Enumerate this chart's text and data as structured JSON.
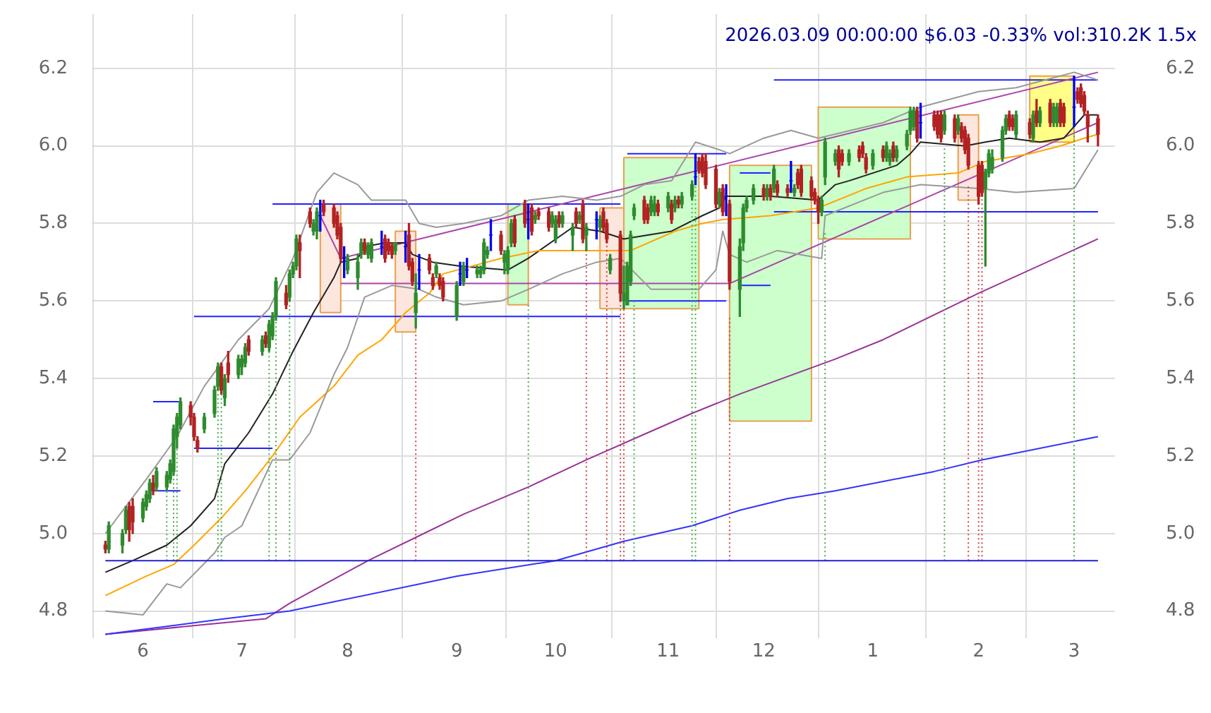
{
  "chart_data": {
    "type": "candlestick",
    "title": "2026.03.09 00:00:00 $6.03 -0.33% vol:310.2K 1.5x",
    "x": [
      "2025-05-22",
      "2025-05-23",
      "2025-05-27",
      "2025-05-28",
      "2025-05-29",
      "2025-05-30",
      "2025-06-02",
      "2025-06-03",
      "2025-06-04",
      "2025-06-05",
      "2025-06-06",
      "2025-06-09",
      "2025-06-10",
      "2025-06-11",
      "2025-06-12",
      "2025-06-13",
      "2025-06-16",
      "2025-06-17",
      "2025-06-18",
      "2025-06-20",
      "2025-06-23",
      "2025-06-24",
      "2025-06-25",
      "2025-06-26",
      "2025-06-27",
      "2025-06-30",
      "2025-07-01",
      "2025-07-02",
      "2025-07-03",
      "2025-07-07",
      "2025-07-08",
      "2025-07-09",
      "2025-07-10",
      "2025-07-11",
      "2025-07-14",
      "2025-07-15",
      "2025-07-16",
      "2025-07-17",
      "2025-07-18",
      "2025-07-21",
      "2025-07-22",
      "2025-07-23",
      "2025-07-24",
      "2025-07-25",
      "2025-07-28",
      "2025-07-29",
      "2025-07-30",
      "2025-07-31",
      "2025-08-01",
      "2025-08-04",
      "2025-08-05",
      "2025-08-06",
      "2025-08-07",
      "2025-08-08",
      "2025-08-11",
      "2025-08-12",
      "2025-08-13",
      "2025-08-14",
      "2025-08-15",
      "2025-08-18",
      "2025-08-19",
      "2025-08-20",
      "2025-08-21",
      "2025-08-22",
      "2025-08-25",
      "2025-08-26",
      "2025-08-27",
      "2025-08-28",
      "2025-08-29",
      "2025-09-02",
      "2025-09-03",
      "2025-09-04",
      "2025-09-05",
      "2025-09-08",
      "2025-09-09",
      "2025-09-10",
      "2025-09-11",
      "2025-09-12",
      "2025-09-15",
      "2025-09-16",
      "2025-09-17",
      "2025-09-18",
      "2025-09-19",
      "2025-09-22",
      "2025-09-23",
      "2025-09-24",
      "2025-09-25",
      "2025-09-26",
      "2025-09-29",
      "2025-09-30",
      "2025-10-01",
      "2025-10-02",
      "2025-10-03",
      "2025-10-06",
      "2025-10-07",
      "2025-10-08",
      "2025-10-09",
      "2025-10-10",
      "2025-10-13",
      "2025-10-14",
      "2025-10-15",
      "2025-10-16",
      "2025-10-17",
      "2025-10-20",
      "2025-10-21",
      "2025-10-22",
      "2025-10-23",
      "2025-10-24",
      "2025-10-27",
      "2025-10-28",
      "2025-10-29",
      "2025-10-30",
      "2025-10-31",
      "2025-11-03",
      "2025-11-04",
      "2025-11-05",
      "2025-11-06",
      "2025-11-07",
      "2025-11-10",
      "2025-11-11",
      "2025-11-12",
      "2025-11-13",
      "2025-11-14",
      "2025-11-17",
      "2025-11-18",
      "2025-11-19",
      "2025-11-20",
      "2025-11-21",
      "2025-11-24",
      "2025-11-25",
      "2025-11-26",
      "2025-11-28",
      "2025-12-01",
      "2025-12-02",
      "2025-12-03",
      "2025-12-04",
      "2025-12-05",
      "2025-12-08",
      "2025-12-09",
      "2025-12-10",
      "2025-12-11",
      "2025-12-12",
      "2025-12-15",
      "2025-12-16",
      "2025-12-17",
      "2025-12-18",
      "2025-12-19",
      "2025-12-22",
      "2025-12-23",
      "2025-12-24",
      "2025-12-26",
      "2025-12-29",
      "2025-12-30",
      "2025-12-31",
      "2026-01-02",
      "2026-01-05",
      "2026-01-06",
      "2026-01-07",
      "2026-01-08",
      "2026-01-09",
      "2026-01-12",
      "2026-01-13",
      "2026-01-14",
      "2026-01-15",
      "2026-01-16",
      "2026-01-20",
      "2026-01-21",
      "2026-01-22",
      "2026-01-23",
      "2026-01-26",
      "2026-01-27",
      "2026-01-28",
      "2026-01-29",
      "2026-01-30",
      "2026-02-02",
      "2026-02-03",
      "2026-02-04",
      "2026-02-05",
      "2026-02-06",
      "2026-02-09",
      "2026-02-10",
      "2026-02-11",
      "2026-02-12",
      "2026-02-13",
      "2026-02-17",
      "2026-02-18",
      "2026-02-19",
      "2026-02-20",
      "2026-02-23",
      "2026-02-24",
      "2026-02-25",
      "2026-02-26",
      "2026-02-27",
      "2026-03-02",
      "2026-03-03",
      "2026-03-04",
      "2026-03-05",
      "2026-03-06",
      "2026-03-09"
    ],
    "ohlc": [
      [
        4.97,
        4.98,
        4.95,
        4.96
      ],
      [
        4.96,
        5.03,
        4.95,
        5.02
      ],
      [
        4.97,
        5.01,
        4.95,
        5.0
      ],
      [
        5.01,
        5.07,
        5.0,
        5.06
      ],
      [
        5.07,
        5.08,
        4.98,
        5.01
      ],
      [
        5.07,
        5.09,
        5.0,
        5.03
      ],
      [
        5.04,
        5.09,
        5.03,
        5.08
      ],
      [
        5.07,
        5.11,
        5.06,
        5.1
      ],
      [
        5.09,
        5.14,
        5.08,
        5.13
      ],
      [
        5.13,
        5.15,
        5.1,
        5.11
      ],
      [
        5.12,
        5.17,
        5.11,
        5.16
      ],
      [
        5.12,
        5.16,
        5.11,
        5.15
      ],
      [
        5.14,
        5.19,
        5.13,
        5.18
      ],
      [
        5.16,
        5.28,
        5.15,
        5.27
      ],
      [
        5.25,
        5.31,
        5.22,
        5.3
      ],
      [
        5.28,
        5.35,
        5.27,
        5.34
      ],
      [
        5.33,
        5.34,
        5.28,
        5.3
      ],
      [
        5.3,
        5.31,
        5.24,
        5.25
      ],
      [
        5.24,
        5.25,
        5.21,
        5.22
      ],
      [
        5.27,
        5.31,
        5.26,
        5.3
      ],
      [
        5.31,
        5.38,
        5.3,
        5.37
      ],
      [
        5.38,
        5.44,
        5.37,
        5.43
      ],
      [
        5.43,
        5.44,
        5.36,
        5.37
      ],
      [
        5.35,
        5.41,
        5.33,
        5.4
      ],
      [
        5.44,
        5.47,
        5.39,
        5.41
      ],
      [
        5.41,
        5.46,
        5.4,
        5.45
      ],
      [
        5.43,
        5.46,
        5.41,
        5.45
      ],
      [
        5.44,
        5.49,
        5.43,
        5.48
      ],
      [
        5.5,
        5.51,
        5.46,
        5.47
      ],
      [
        5.47,
        5.51,
        5.46,
        5.5
      ],
      [
        5.51,
        5.52,
        5.48,
        5.49
      ],
      [
        5.48,
        5.55,
        5.47,
        5.54
      ],
      [
        5.51,
        5.57,
        5.5,
        5.56
      ],
      [
        5.56,
        5.66,
        5.55,
        5.65
      ],
      [
        5.62,
        5.64,
        5.58,
        5.59
      ],
      [
        5.61,
        5.68,
        5.6,
        5.67
      ],
      [
        5.67,
        5.7,
        5.66,
        5.69
      ],
      [
        5.69,
        5.77,
        5.68,
        5.76
      ],
      [
        5.75,
        5.77,
        5.66,
        5.73
      ],
      [
        5.83,
        5.84,
        5.79,
        5.8
      ],
      [
        5.78,
        5.81,
        5.77,
        5.8
      ],
      [
        5.78,
        5.84,
        5.76,
        5.83
      ],
      [
        5.82,
        5.86,
        5.78,
        5.82
      ],
      [
        5.85,
        5.86,
        5.82,
        5.83
      ],
      [
        5.84,
        5.85,
        5.79,
        5.8
      ],
      [
        5.82,
        5.83,
        5.76,
        5.77
      ],
      [
        5.79,
        5.8,
        5.7,
        5.71
      ],
      [
        5.71,
        5.74,
        5.66,
        5.71
      ],
      [
        5.68,
        5.72,
        5.67,
        5.71
      ],
      [
        5.66,
        5.72,
        5.63,
        5.7
      ],
      [
        5.72,
        5.76,
        5.71,
        5.75
      ],
      [
        5.75,
        5.76,
        5.72,
        5.73
      ],
      [
        5.72,
        5.75,
        5.71,
        5.74
      ],
      [
        5.71,
        5.76,
        5.7,
        5.75
      ],
      [
        5.74,
        5.78,
        5.72,
        5.74
      ],
      [
        5.76,
        5.77,
        5.7,
        5.71
      ],
      [
        5.75,
        5.76,
        5.72,
        5.73
      ],
      [
        5.74,
        5.75,
        5.71,
        5.72
      ],
      [
        5.73,
        5.75,
        5.72,
        5.75
      ],
      [
        5.74,
        5.78,
        5.7,
        5.74
      ],
      [
        5.77,
        5.8,
        5.68,
        5.69
      ],
      [
        5.7,
        5.71,
        5.64,
        5.65
      ],
      [
        5.57,
        5.67,
        5.53,
        5.62
      ],
      [
        5.68,
        5.72,
        5.63,
        5.68
      ],
      [
        5.71,
        5.72,
        5.67,
        5.68
      ],
      [
        5.66,
        5.67,
        5.63,
        5.64
      ],
      [
        5.67,
        5.7,
        5.66,
        5.69
      ],
      [
        5.66,
        5.67,
        5.63,
        5.64
      ],
      [
        5.65,
        5.66,
        5.6,
        5.61
      ],
      [
        5.56,
        5.65,
        5.55,
        5.64
      ],
      [
        5.67,
        5.7,
        5.64,
        5.67
      ],
      [
        5.65,
        5.7,
        5.64,
        5.69
      ],
      [
        5.68,
        5.71,
        5.66,
        5.68
      ],
      [
        5.67,
        5.69,
        5.66,
        5.68
      ],
      [
        5.67,
        5.69,
        5.66,
        5.68
      ],
      [
        5.68,
        5.76,
        5.67,
        5.75
      ],
      [
        5.72,
        5.74,
        5.71,
        5.73
      ],
      [
        5.77,
        5.81,
        5.73,
        5.77
      ],
      [
        5.77,
        5.78,
        5.72,
        5.73
      ],
      [
        5.7,
        5.73,
        5.67,
        5.72
      ],
      [
        5.68,
        5.74,
        5.67,
        5.73
      ],
      [
        5.75,
        5.81,
        5.74,
        5.8
      ],
      [
        5.81,
        5.82,
        5.74,
        5.75
      ],
      [
        5.85,
        5.86,
        5.79,
        5.8
      ],
      [
        5.81,
        5.85,
        5.76,
        5.81
      ],
      [
        5.84,
        5.85,
        5.77,
        5.78
      ],
      [
        5.81,
        5.83,
        5.8,
        5.82
      ],
      [
        5.83,
        5.84,
        5.81,
        5.82
      ],
      [
        5.83,
        5.84,
        5.78,
        5.79
      ],
      [
        5.8,
        5.83,
        5.79,
        5.82
      ],
      [
        5.76,
        5.82,
        5.75,
        5.81
      ],
      [
        5.82,
        5.83,
        5.79,
        5.8
      ],
      [
        5.8,
        5.83,
        5.79,
        5.82
      ],
      [
        5.77,
        5.8,
        5.73,
        5.79
      ],
      [
        5.83,
        5.84,
        5.79,
        5.8
      ],
      [
        5.81,
        5.83,
        5.8,
        5.82
      ],
      [
        5.85,
        5.86,
        5.75,
        5.76
      ],
      [
        5.77,
        5.8,
        5.73,
        5.79
      ],
      [
        5.81,
        5.83,
        5.76,
        5.81
      ],
      [
        5.79,
        5.82,
        5.78,
        5.81
      ],
      [
        5.83,
        5.84,
        5.78,
        5.79
      ],
      [
        5.8,
        5.81,
        5.75,
        5.76
      ],
      [
        5.68,
        5.72,
        5.67,
        5.71
      ],
      [
        5.77,
        5.78,
        5.6,
        5.62
      ],
      [
        5.6,
        5.69,
        5.58,
        5.62
      ],
      [
        5.59,
        5.7,
        5.59,
        5.69
      ],
      [
        5.65,
        5.78,
        5.64,
        5.77
      ],
      [
        5.82,
        5.85,
        5.81,
        5.84
      ],
      [
        5.86,
        5.87,
        5.8,
        5.81
      ],
      [
        5.84,
        5.85,
        5.8,
        5.81
      ],
      [
        5.83,
        5.87,
        5.82,
        5.86
      ],
      [
        5.83,
        5.87,
        5.82,
        5.85
      ],
      [
        5.85,
        5.86,
        5.82,
        5.83
      ],
      [
        5.84,
        5.88,
        5.83,
        5.87
      ],
      [
        5.85,
        5.86,
        5.8,
        5.81
      ],
      [
        5.84,
        5.87,
        5.83,
        5.86
      ],
      [
        5.86,
        5.87,
        5.84,
        5.85
      ],
      [
        5.85,
        5.88,
        5.84,
        5.87
      ],
      [
        5.87,
        5.91,
        5.86,
        5.9
      ],
      [
        5.92,
        5.98,
        5.9,
        5.92
      ],
      [
        5.96,
        5.97,
        5.93,
        5.94
      ],
      [
        5.97,
        5.98,
        5.92,
        5.93
      ],
      [
        5.96,
        5.98,
        5.89,
        5.9
      ],
      [
        5.94,
        5.95,
        5.84,
        5.85
      ],
      [
        5.85,
        5.89,
        5.84,
        5.88
      ],
      [
        5.89,
        5.9,
        5.82,
        5.83
      ],
      [
        5.87,
        5.9,
        5.82,
        5.87
      ],
      [
        5.85,
        5.86,
        5.63,
        5.65
      ],
      [
        5.63,
        5.76,
        5.56,
        5.74
      ],
      [
        5.75,
        5.85,
        5.73,
        5.84
      ],
      [
        5.84,
        5.87,
        5.83,
        5.86
      ],
      [
        5.86,
        5.9,
        5.85,
        5.89
      ],
      [
        5.89,
        5.9,
        5.86,
        5.87
      ],
      [
        5.87,
        5.9,
        5.86,
        5.89
      ],
      [
        5.89,
        5.9,
        5.86,
        5.87
      ],
      [
        5.89,
        5.95,
        5.88,
        5.94
      ],
      [
        5.9,
        5.91,
        5.87,
        5.88
      ],
      [
        5.89,
        5.9,
        5.87,
        5.88
      ],
      [
        5.91,
        5.96,
        5.88,
        5.91
      ],
      [
        5.88,
        5.9,
        5.87,
        5.89
      ],
      [
        5.93,
        5.94,
        5.89,
        5.9
      ],
      [
        5.94,
        5.95,
        5.87,
        5.88
      ],
      [
        5.91,
        5.92,
        5.86,
        5.87
      ],
      [
        5.88,
        5.89,
        5.85,
        5.86
      ],
      [
        5.86,
        5.87,
        5.8,
        5.83
      ],
      [
        5.83,
        5.87,
        5.82,
        5.86
      ],
      [
        5.92,
        6.02,
        5.9,
        6.01
      ],
      [
        5.96,
        5.99,
        5.95,
        5.98
      ],
      [
        5.99,
        6.0,
        5.92,
        5.94
      ],
      [
        5.98,
        5.99,
        5.95,
        5.96
      ],
      [
        5.96,
        5.99,
        5.95,
        5.98
      ],
      [
        5.99,
        6.0,
        5.96,
        5.97
      ],
      [
        6.0,
        6.01,
        5.97,
        5.98
      ],
      [
        5.97,
        5.98,
        5.93,
        5.94
      ],
      [
        5.95,
        5.99,
        5.94,
        5.98
      ],
      [
        5.99,
        6.0,
        5.96,
        5.97
      ],
      [
        5.97,
        6.01,
        5.96,
        6.0
      ],
      [
        5.96,
        5.99,
        5.95,
        5.98
      ],
      [
        6.0,
        6.01,
        5.96,
        5.97
      ],
      [
        5.97,
        6.0,
        5.96,
        5.99
      ],
      [
        6.0,
        6.04,
        5.99,
        6.03
      ],
      [
        6.04,
        6.1,
        6.03,
        6.09
      ],
      [
        6.05,
        6.1,
        6.04,
        6.09
      ],
      [
        6.09,
        6.1,
        6.01,
        6.02
      ],
      [
        6.06,
        6.11,
        6.02,
        6.06
      ],
      [
        6.08,
        6.09,
        6.04,
        6.05
      ],
      [
        6.08,
        6.09,
        6.02,
        6.03
      ],
      [
        6.08,
        6.09,
        6.01,
        6.02
      ],
      [
        6.04,
        6.09,
        6.03,
        6.08
      ],
      [
        6.07,
        6.08,
        6.01,
        6.02
      ],
      [
        6.04,
        6.08,
        6.03,
        6.07
      ],
      [
        6.05,
        6.06,
        6.01,
        6.02
      ],
      [
        6.04,
        6.05,
        5.98,
        5.99
      ],
      [
        6.02,
        6.03,
        5.94,
        5.95
      ],
      [
        5.95,
        5.96,
        5.85,
        5.87
      ],
      [
        5.95,
        5.96,
        5.87,
        5.88
      ],
      [
        5.89,
        5.94,
        5.69,
        5.93
      ],
      [
        5.93,
        5.99,
        5.92,
        5.98
      ],
      [
        5.94,
        5.99,
        5.93,
        5.97
      ],
      [
        5.97,
        6.05,
        5.96,
        6.04
      ],
      [
        6.04,
        6.08,
        6.03,
        6.07
      ],
      [
        6.08,
        6.09,
        6.04,
        6.05
      ],
      [
        6.07,
        6.08,
        6.04,
        6.05
      ],
      [
        6.03,
        6.09,
        6.02,
        6.08
      ],
      [
        6.06,
        6.07,
        6.02,
        6.03
      ],
      [
        6.02,
        6.09,
        6.01,
        6.08
      ],
      [
        6.09,
        6.12,
        6.05,
        6.06
      ],
      [
        6.06,
        6.1,
        6.05,
        6.09
      ],
      [
        6.11,
        6.12,
        6.05,
        6.06
      ],
      [
        6.06,
        6.11,
        6.05,
        6.1
      ],
      [
        6.06,
        6.11,
        6.05,
        6.1
      ],
      [
        6.11,
        6.12,
        6.05,
        6.06
      ],
      [
        6.1,
        6.11,
        6.05,
        6.06
      ],
      [
        6.1,
        6.18,
        6.05,
        6.1
      ],
      [
        6.14,
        6.15,
        6.11,
        6.12
      ],
      [
        6.15,
        6.16,
        6.1,
        6.11
      ],
      [
        6.13,
        6.14,
        6.08,
        6.09
      ],
      [
        6.08,
        6.09,
        6.01,
        6.05
      ],
      [
        6.07,
        6.08,
        6.0,
        6.03
      ]
    ],
    "series": [
      {
        "type": "area",
        "color": "#fce6de",
        "x": [
          "2025-07-24",
          "2025-07-24",
          "2025-07-30",
          "2025-07-30",
          "2025-07-24"
        ],
        "values": [
          5.57,
          5.85,
          5.85,
          5.57,
          5.57
        ]
      },
      {
        "type": "area",
        "color": "#fce6de",
        "x": [
          "2025-08-15",
          "2025-08-15",
          "2025-08-21",
          "2025-08-21",
          "2025-08-15"
        ],
        "values": [
          5.52,
          5.78,
          5.78,
          5.52,
          5.52
        ]
      },
      {
        "type": "area",
        "color": "#ccffcc",
        "x": [
          "2025-09-17",
          "2025-09-17",
          "2025-09-23",
          "2025-09-23",
          "2025-09-17"
        ],
        "values": [
          5.59,
          5.85,
          5.85,
          5.59,
          5.59
        ]
      },
      {
        "type": "area",
        "color": "#fce6de",
        "x": [
          "2025-10-14",
          "2025-10-14",
          "2025-10-21",
          "2025-10-21",
          "2025-10-14"
        ],
        "values": [
          5.58,
          5.84,
          5.84,
          5.58,
          5.58
        ]
      },
      {
        "type": "area",
        "color": "#ccffcc",
        "x": [
          "2025-10-21",
          "2025-10-21",
          "2025-11-12",
          "2025-11-12",
          "2025-10-21"
        ],
        "values": [
          5.58,
          5.97,
          5.97,
          5.58,
          5.58
        ]
      },
      {
        "type": "area",
        "color": "#ccffcc",
        "x": [
          "2025-11-21",
          "2025-11-21",
          "2025-12-15",
          "2025-12-15",
          "2025-11-21"
        ],
        "values": [
          5.29,
          5.95,
          5.95,
          5.29,
          5.29
        ]
      },
      {
        "type": "area",
        "color": "#ccffcc",
        "x": [
          "2025-12-17",
          "2025-12-17",
          "2026-01-13",
          "2026-01-13",
          "2025-12-17"
        ],
        "values": [
          5.76,
          6.1,
          6.1,
          5.76,
          5.76
        ]
      },
      {
        "type": "area",
        "color": "#fce6de",
        "x": [
          "2026-01-27",
          "2026-01-27",
          "2026-02-02",
          "2026-02-02",
          "2026-01-27"
        ],
        "values": [
          5.86,
          6.08,
          6.08,
          5.86,
          5.86
        ]
      },
      {
        "type": "area",
        "color": "#ffff88",
        "x": [
          "2026-02-17",
          "2026-02-17",
          "2026-03-02",
          "2026-03-02",
          "2026-02-17"
        ],
        "values": [
          6.01,
          6.18,
          6.18,
          6.01,
          6.01
        ]
      },
      {
        "type": "line",
        "color": "#2222cc",
        "x": [
          "2025-05-22",
          "2026-03-09"
        ],
        "values": [
          4.93,
          4.93
        ]
      },
      {
        "type": "line",
        "color": "#44aa44",
        "line_style": "dotted",
        "x": [
          "2025-06-09",
          "2025-06-09"
        ],
        "values": [
          4.93,
          5.11
        ]
      },
      {
        "type": "line",
        "color": "#44aa44",
        "line_style": "dotted",
        "x": [
          "2025-06-11",
          "2025-06-11"
        ],
        "values": [
          4.93,
          5.15
        ]
      },
      {
        "type": "line",
        "color": "#44aa44",
        "line_style": "dotted",
        "x": [
          "2025-06-12",
          "2025-06-12"
        ],
        "values": [
          4.93,
          5.22
        ]
      },
      {
        "type": "line",
        "color": "#44aa44",
        "line_style": "dotted",
        "x": [
          "2025-06-24",
          "2025-06-24"
        ],
        "values": [
          4.93,
          5.37
        ]
      },
      {
        "type": "line",
        "color": "#44aa44",
        "line_style": "dotted",
        "x": [
          "2025-06-25",
          "2025-06-25"
        ],
        "values": [
          4.93,
          5.36
        ]
      },
      {
        "type": "line",
        "color": "#44aa44",
        "line_style": "dotted",
        "x": [
          "2025-07-09",
          "2025-07-09"
        ],
        "values": [
          4.93,
          5.47
        ]
      },
      {
        "type": "line",
        "color": "#44aa44",
        "line_style": "dotted",
        "x": [
          "2025-07-11",
          "2025-07-11"
        ],
        "values": [
          4.93,
          5.55
        ]
      },
      {
        "type": "line",
        "color": "#44aa44",
        "line_style": "dotted",
        "x": [
          "2025-07-15",
          "2025-07-15"
        ],
        "values": [
          4.93,
          5.6
        ]
      },
      {
        "type": "line",
        "color": "#44aa44",
        "line_style": "dotted",
        "x": [
          "2025-09-23",
          "2025-09-23"
        ],
        "values": [
          4.93,
          5.59
        ]
      },
      {
        "type": "line",
        "color": "#44aa44",
        "line_style": "dotted",
        "x": [
          "2025-10-24",
          "2025-10-24"
        ],
        "values": [
          4.93,
          5.6
        ]
      },
      {
        "type": "line",
        "color": "#44aa44",
        "line_style": "dotted",
        "x": [
          "2025-11-10",
          "2025-11-10"
        ],
        "values": [
          4.93,
          5.86
        ]
      },
      {
        "type": "line",
        "color": "#44aa44",
        "line_style": "dotted",
        "x": [
          "2025-11-11",
          "2025-11-11"
        ],
        "values": [
          4.93,
          5.9
        ]
      },
      {
        "type": "line",
        "color": "#44aa44",
        "line_style": "dotted",
        "x": [
          "2025-12-19",
          "2025-12-19"
        ],
        "values": [
          4.93,
          5.78
        ]
      },
      {
        "type": "line",
        "color": "#44aa44",
        "line_style": "dotted",
        "x": [
          "2026-01-23",
          "2026-01-23"
        ],
        "values": [
          4.93,
          6.0
        ]
      },
      {
        "type": "line",
        "color": "#44aa44",
        "line_style": "dotted",
        "x": [
          "2026-03-02",
          "2026-03-02"
        ],
        "values": [
          4.93,
          6.04
        ]
      },
      {
        "type": "line",
        "color": "#cc4444",
        "line_style": "dotted",
        "x": [
          "2025-08-21",
          "2025-08-21"
        ],
        "values": [
          4.93,
          5.52
        ]
      },
      {
        "type": "line",
        "color": "#cc4444",
        "line_style": "dotted",
        "x": [
          "2025-10-10",
          "2025-10-10"
        ],
        "values": [
          4.93,
          5.73
        ]
      },
      {
        "type": "line",
        "color": "#cc4444",
        "line_style": "dotted",
        "x": [
          "2025-10-16",
          "2025-10-16"
        ],
        "values": [
          4.93,
          5.75
        ]
      },
      {
        "type": "line",
        "color": "#cc4444",
        "line_style": "dotted",
        "x": [
          "2025-10-20",
          "2025-10-20"
        ],
        "values": [
          4.93,
          5.6
        ]
      },
      {
        "type": "line",
        "color": "#cc4444",
        "line_style": "dotted",
        "x": [
          "2025-10-21",
          "2025-10-21"
        ],
        "values": [
          4.93,
          5.58
        ]
      },
      {
        "type": "line",
        "color": "#cc4444",
        "line_style": "dotted",
        "x": [
          "2025-11-21",
          "2025-11-21"
        ],
        "values": [
          4.93,
          5.56
        ]
      },
      {
        "type": "line",
        "color": "#cc4444",
        "line_style": "dotted",
        "x": [
          "2026-01-30",
          "2026-01-30"
        ],
        "values": [
          4.93,
          5.9
        ]
      },
      {
        "type": "line",
        "color": "#cc4444",
        "line_style": "dotted",
        "x": [
          "2026-02-02",
          "2026-02-02"
        ],
        "values": [
          4.93,
          5.85
        ]
      },
      {
        "type": "line",
        "color": "#cc4444",
        "line_style": "dotted",
        "x": [
          "2026-02-03",
          "2026-02-03"
        ],
        "values": [
          4.93,
          5.87
        ]
      },
      {
        "type": "line",
        "color": "#3333ff",
        "x": [
          "2025-05-22",
          "2025-06-26",
          "2025-07-15",
          "2025-09-02",
          "2025-10-01",
          "2025-10-21",
          "2025-11-10",
          "2025-11-24",
          "2025-12-08",
          "2025-12-22",
          "2026-01-20",
          "2026-02-03",
          "2026-03-09"
        ],
        "values": [
          4.74,
          4.78,
          4.8,
          4.89,
          4.93,
          4.98,
          5.02,
          5.06,
          5.09,
          5.11,
          5.16,
          5.19,
          5.25
        ]
      },
      {
        "type": "line",
        "color": "#993399",
        "x": [
          "2025-05-22",
          "2025-06-26",
          "2025-07-08",
          "2025-07-15",
          "2025-08-07",
          "2025-08-21",
          "2025-09-04",
          "2025-09-23",
          "2025-10-10",
          "2025-10-28",
          "2025-11-10",
          "2025-11-24",
          "2025-12-22",
          "2026-01-05",
          "2026-02-02",
          "2026-03-09"
        ],
        "values": [
          4.74,
          4.77,
          4.78,
          4.82,
          4.93,
          4.99,
          5.05,
          5.12,
          5.19,
          5.26,
          5.31,
          5.36,
          5.45,
          5.5,
          5.62,
          5.76
        ]
      },
      {
        "type": "line",
        "color": "#999999",
        "x": [
          "2025-05-22",
          "2025-06-03",
          "2025-06-12",
          "2025-06-20",
          "2025-06-30",
          "2025-07-09",
          "2025-07-16",
          "2025-07-23",
          "2025-07-28",
          "2025-08-04",
          "2025-08-08",
          "2025-08-18",
          "2025-08-22",
          "2025-08-27",
          "2025-09-04",
          "2025-09-15",
          "2025-09-23",
          "2025-10-03",
          "2025-10-13",
          "2025-10-20",
          "2025-10-27",
          "2025-11-04",
          "2025-11-11",
          "2025-11-18",
          "2025-11-21",
          "2025-12-01",
          "2025-12-09",
          "2025-12-17",
          "2026-01-05",
          "2026-01-16",
          "2026-02-02",
          "2026-02-13",
          "2026-03-02",
          "2026-03-09"
        ],
        "values": [
          5.0,
          5.14,
          5.25,
          5.38,
          5.5,
          5.58,
          5.71,
          5.88,
          5.93,
          5.9,
          5.86,
          5.86,
          5.8,
          5.79,
          5.8,
          5.82,
          5.86,
          5.87,
          5.86,
          5.87,
          5.9,
          5.91,
          6.01,
          5.99,
          5.98,
          6.02,
          6.04,
          6.02,
          6.06,
          6.1,
          6.14,
          6.15,
          6.19,
          6.17
        ]
      },
      {
        "type": "line",
        "color": "#999999",
        "x": [
          "2025-05-22",
          "2025-06-02",
          "2025-06-09",
          "2025-06-13",
          "2025-06-23",
          "2025-06-26",
          "2025-07-01",
          "2025-07-10",
          "2025-07-15",
          "2025-07-21",
          "2025-07-28",
          "2025-08-01",
          "2025-08-06",
          "2025-08-14",
          "2025-08-22",
          "2025-08-27",
          "2025-09-04",
          "2025-09-15",
          "2025-09-23",
          "2025-10-03",
          "2025-10-13",
          "2025-10-20",
          "2025-10-29",
          "2025-11-12",
          "2025-11-17",
          "2025-11-19",
          "2025-11-21",
          "2025-11-26",
          "2025-12-05",
          "2025-12-18",
          "2025-12-19",
          "2026-01-05",
          "2026-01-16",
          "2026-02-02",
          "2026-02-13",
          "2026-03-02",
          "2026-03-09"
        ],
        "values": [
          4.8,
          4.79,
          4.87,
          4.86,
          4.95,
          4.99,
          5.02,
          5.19,
          5.19,
          5.26,
          5.41,
          5.48,
          5.61,
          5.64,
          5.63,
          5.61,
          5.59,
          5.6,
          5.63,
          5.67,
          5.7,
          5.71,
          5.63,
          5.63,
          5.68,
          5.78,
          5.72,
          5.7,
          5.73,
          5.71,
          5.82,
          5.88,
          5.9,
          5.89,
          5.88,
          5.89,
          5.99
        ]
      },
      {
        "type": "line",
        "color": "#ffa500",
        "x": [
          "2025-05-22",
          "2025-06-03",
          "2025-06-11",
          "2025-06-17",
          "2025-06-25",
          "2025-07-02",
          "2025-07-10",
          "2025-07-18",
          "2025-07-28",
          "2025-08-04",
          "2025-08-11",
          "2025-08-18",
          "2025-08-25",
          "2025-08-29",
          "2025-09-15",
          "2025-09-26",
          "2025-10-10",
          "2025-10-23",
          "2025-11-05",
          "2025-11-13",
          "2025-11-19",
          "2025-12-03",
          "2025-12-17",
          "2025-12-31",
          "2026-01-12",
          "2026-01-27",
          "2026-02-04",
          "2026-02-17",
          "2026-02-26",
          "2026-03-05",
          "2026-03-09"
        ],
        "values": [
          4.84,
          4.89,
          4.92,
          4.97,
          5.04,
          5.11,
          5.2,
          5.3,
          5.38,
          5.46,
          5.5,
          5.57,
          5.62,
          5.67,
          5.71,
          5.73,
          5.73,
          5.73,
          5.78,
          5.8,
          5.81,
          5.82,
          5.84,
          5.89,
          5.92,
          5.93,
          5.96,
          5.98,
          6.0,
          6.02,
          6.03
        ]
      },
      {
        "type": "line",
        "color": "#222222",
        "x": [
          "2025-05-22",
          "2025-05-30",
          "2025-06-09",
          "2025-06-16",
          "2025-06-23",
          "2025-06-26",
          "2025-07-03",
          "2025-07-10",
          "2025-07-16",
          "2025-07-22",
          "2025-07-28",
          "2025-07-30",
          "2025-08-04",
          "2025-08-06",
          "2025-08-12",
          "2025-08-18",
          "2025-08-20",
          "2025-08-26",
          "2025-09-03",
          "2025-09-17",
          "2025-09-23",
          "2025-10-06",
          "2025-10-14",
          "2025-10-21",
          "2025-11-04",
          "2025-11-13",
          "2025-11-18",
          "2025-11-20",
          "2025-12-03",
          "2025-12-17",
          "2025-12-22",
          "2025-12-26",
          "2026-01-09",
          "2026-01-13",
          "2026-01-16",
          "2026-01-29",
          "2026-02-04",
          "2026-02-11",
          "2026-02-20",
          "2026-02-27",
          "2026-03-04",
          "2026-03-05",
          "2026-03-09"
        ],
        "values": [
          4.9,
          4.93,
          4.97,
          5.02,
          5.09,
          5.18,
          5.26,
          5.36,
          5.47,
          5.57,
          5.66,
          5.7,
          5.71,
          5.74,
          5.75,
          5.75,
          5.72,
          5.7,
          5.69,
          5.68,
          5.71,
          5.79,
          5.78,
          5.76,
          5.78,
          5.82,
          5.84,
          5.87,
          5.87,
          5.86,
          5.9,
          5.91,
          5.95,
          5.98,
          6.01,
          6.0,
          6.01,
          6.02,
          6.01,
          6.02,
          6.07,
          6.08,
          6.08
        ]
      },
      {
        "type": "line",
        "color": "#aa44aa",
        "x": [
          "2025-07-24",
          "2025-07-30",
          "2026-03-09"
        ],
        "values": [
          5.82,
          5.71,
          6.19
        ]
      },
      {
        "type": "line",
        "color": "#aa44aa",
        "x": [
          "2025-07-30",
          "2025-11-21",
          "2026-03-09"
        ],
        "values": [
          5.645,
          5.645,
          6.06
        ]
      },
      {
        "type": "line",
        "color": "#2222ff",
        "x": [
          "2025-06-05",
          "2025-06-13"
        ],
        "values": [
          5.34,
          5.34
        ]
      },
      {
        "type": "line",
        "color": "#2222ff",
        "x": [
          "2025-06-05",
          "2025-06-13"
        ],
        "values": [
          5.11,
          5.11
        ]
      },
      {
        "type": "line",
        "color": "#2222ff",
        "x": [
          "2025-06-17",
          "2025-07-10"
        ],
        "values": [
          5.22,
          5.22
        ]
      },
      {
        "type": "line",
        "color": "#2222ff",
        "x": [
          "2025-06-17",
          "2025-10-20"
        ],
        "values": [
          5.56,
          5.56
        ]
      },
      {
        "type": "line",
        "color": "#2222ff",
        "x": [
          "2025-07-10",
          "2025-10-20"
        ],
        "values": [
          5.85,
          5.85
        ]
      },
      {
        "type": "line",
        "color": "#2222ff",
        "x": [
          "2025-10-22",
          "2025-11-20"
        ],
        "values": [
          5.98,
          5.98
        ]
      },
      {
        "type": "line",
        "color": "#2222ff",
        "x": [
          "2025-10-22",
          "2025-11-20"
        ],
        "values": [
          5.6,
          5.6
        ]
      },
      {
        "type": "line",
        "color": "#2222ff",
        "x": [
          "2025-11-24",
          "2025-12-03"
        ],
        "values": [
          5.93,
          5.93
        ]
      },
      {
        "type": "line",
        "color": "#2222ff",
        "x": [
          "2025-11-24",
          "2025-12-03"
        ],
        "values": [
          5.64,
          5.64
        ]
      },
      {
        "type": "line",
        "color": "#2222ff",
        "x": [
          "2025-12-04",
          "2026-03-09"
        ],
        "values": [
          6.17,
          6.17
        ]
      },
      {
        "type": "line",
        "color": "#2222ff",
        "x": [
          "2025-12-04",
          "2026-03-09"
        ],
        "values": [
          5.83,
          5.83
        ]
      }
    ],
    "xlim": [
      "2025-05-18",
      "2026-03-14"
    ],
    "xticks": [
      {
        "value": "2025-06-02",
        "label": "6"
      },
      {
        "value": "2025-07-01",
        "label": "7"
      },
      {
        "value": "2025-08-01",
        "label": "8"
      },
      {
        "value": "2025-09-02",
        "label": "9"
      },
      {
        "value": "2025-10-01",
        "label": "10"
      },
      {
        "value": "2025-11-03",
        "label": "11"
      },
      {
        "value": "2025-12-01",
        "label": "12"
      },
      {
        "value": "2026-01-02",
        "label": "1"
      },
      {
        "value": "2026-02-02",
        "label": "2"
      },
      {
        "value": "2026-03-02",
        "label": "3"
      }
    ],
    "ylim": [
      4.73,
      6.34
    ],
    "yticks": [
      4.8,
      {
        "value": 5,
        "label": "5.0"
      },
      5.2,
      5.4,
      5.6,
      5.8,
      {
        "value": 6,
        "label": "6.0"
      },
      6.2
    ],
    "y2lim": [
      4.73,
      6.34
    ],
    "y2ticks": [
      4.8,
      {
        "value": 5,
        "label": "5.0"
      },
      5.2,
      5.4,
      5.6,
      5.8,
      {
        "value": 6,
        "label": "6.0"
      },
      6.2
    ],
    "grid": true
  }
}
